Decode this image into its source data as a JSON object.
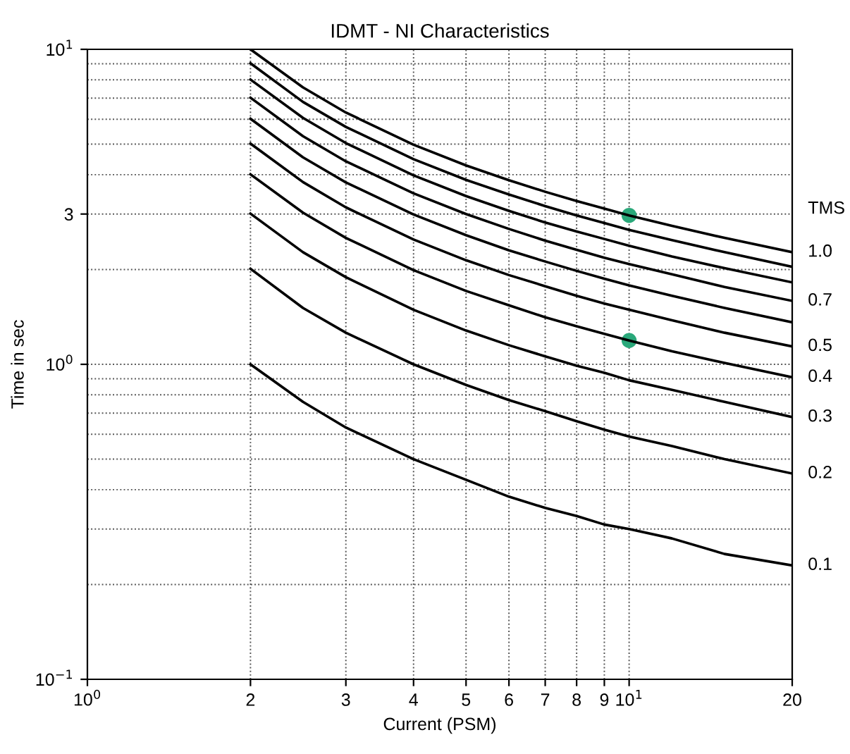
{
  "chart_data": {
    "type": "line",
    "title": "IDMT - NI Characteristics",
    "xlabel": "Current (PSM)",
    "ylabel": "Time in sec",
    "log": "xy",
    "grid": true,
    "legend": false,
    "marker": "none",
    "line_style": "solid",
    "xlim": [
      1,
      20
    ],
    "xticks": [
      {
        "value": 1,
        "label": "10$^{0}$"
      },
      2,
      3,
      4,
      5,
      6,
      7,
      8,
      9,
      {
        "value": 10,
        "label": "10$^{1}$"
      },
      20
    ],
    "ylim": [
      0.1,
      10
    ],
    "yticks": [
      {
        "value": 0.1,
        "label": "10$^{−1}$"
      },
      {
        "value": 1,
        "label": "10$^{0}$"
      },
      3,
      {
        "value": 10,
        "label": "10$^{1}$"
      }
    ],
    "x": [
      2,
      2.5,
      3,
      4,
      5,
      6,
      7,
      8,
      9,
      10,
      12,
      15,
      20
    ],
    "annotations": [
      "TMS"
    ],
    "series": [
      {
        "name": "1.0",
        "color": "#000000",
        "values": [
          10.0,
          7.57,
          6.3,
          4.98,
          4.28,
          3.84,
          3.53,
          3.3,
          3.12,
          2.97,
          2.75,
          2.52,
          2.27
        ]
      },
      {
        "color": "#000000",
        "values": [
          9.03,
          6.81,
          5.67,
          4.48,
          3.85,
          3.46,
          3.18,
          2.97,
          2.81,
          2.67,
          2.48,
          2.27,
          2.04
        ]
      },
      {
        "color": "#000000",
        "values": [
          8.02,
          6.06,
          5.04,
          3.98,
          3.42,
          3.07,
          2.82,
          2.64,
          2.5,
          2.38,
          2.2,
          2.02,
          1.82
        ]
      },
      {
        "name": "0.7",
        "color": "#000000",
        "values": [
          7.02,
          5.3,
          4.41,
          3.49,
          3.0,
          2.69,
          2.47,
          2.31,
          2.18,
          2.08,
          1.93,
          1.76,
          1.59
        ]
      },
      {
        "color": "#000000",
        "values": [
          6.02,
          4.54,
          3.78,
          2.99,
          2.57,
          2.3,
          2.12,
          1.98,
          1.87,
          1.78,
          1.65,
          1.51,
          1.36
        ]
      },
      {
        "name": "0.5",
        "color": "#000000",
        "values": [
          5.02,
          3.79,
          3.15,
          2.49,
          2.14,
          1.92,
          1.77,
          1.65,
          1.56,
          1.49,
          1.38,
          1.26,
          1.14
        ]
      },
      {
        "name": "0.4",
        "color": "#000000",
        "values": [
          4.01,
          3.03,
          2.52,
          1.99,
          1.71,
          1.54,
          1.41,
          1.32,
          1.25,
          1.19,
          1.1,
          1.01,
          0.91
        ]
      },
      {
        "name": "0.3",
        "color": "#000000",
        "values": [
          3.01,
          2.27,
          1.89,
          1.49,
          1.28,
          1.15,
          1.06,
          0.99,
          0.94,
          0.89,
          0.83,
          0.76,
          0.68
        ]
      },
      {
        "name": "0.2",
        "color": "#000000",
        "values": [
          2.01,
          1.51,
          1.26,
          1.0,
          0.86,
          0.77,
          0.71,
          0.66,
          0.62,
          0.59,
          0.55,
          0.5,
          0.45
        ]
      },
      {
        "name": "0.1",
        "color": "#000000",
        "values": [
          1.0,
          0.76,
          0.63,
          0.5,
          0.43,
          0.38,
          0.35,
          0.33,
          0.31,
          0.3,
          0.28,
          0.25,
          0.23
        ]
      },
      {
        "type": "scatter",
        "marker": "circle",
        "color": "#2aa87a",
        "x": [
          10,
          10
        ],
        "values": [
          2.97,
          1.19
        ]
      }
    ]
  }
}
